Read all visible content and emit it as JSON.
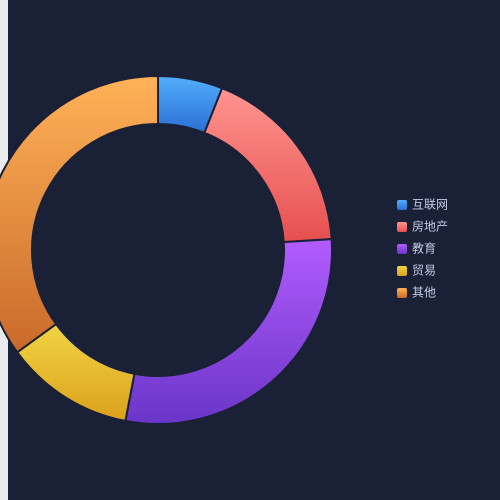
{
  "chart_data": {
    "type": "donut",
    "categories": [
      "互联网",
      "房地产",
      "教育",
      "贸易",
      "其他"
    ],
    "values": [
      6,
      18,
      29,
      12,
      35
    ],
    "colors": [
      [
        "#52aefc",
        "#2b6fd4"
      ],
      [
        "#ff9490",
        "#e6504f"
      ],
      [
        "#b25cfd",
        "#6a35c8"
      ],
      [
        "#f2d444",
        "#daa11c"
      ],
      [
        "#ffb257",
        "#c9692a"
      ]
    ],
    "legend": "right"
  }
}
